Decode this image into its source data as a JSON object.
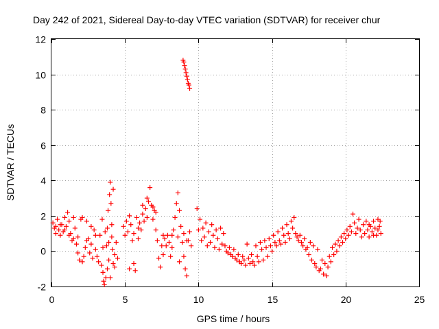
{
  "chart_data": {
    "type": "scatter",
    "title": "Day 242 of 2021, Sidereal Day-to-day VTEC variation (SDTVAR) for receiver chur",
    "xlabel": "GPS time / hours",
    "ylabel": "SDTVAR / TECUs",
    "xlim": [
      0,
      25
    ],
    "ylim": [
      -2,
      12
    ],
    "xticks": [
      "0",
      "5",
      "10",
      "15",
      "20",
      "25"
    ],
    "yticks": [
      "-2",
      "0",
      "2",
      "4",
      "6",
      "8",
      "10",
      "12"
    ],
    "grid": true,
    "marker": "+",
    "color": "#ff0000",
    "series": [
      {
        "name": "SDTVAR",
        "points": [
          [
            0.1,
            1.6
          ],
          [
            0.2,
            1.3
          ],
          [
            0.3,
            1.0
          ],
          [
            0.4,
            1.8
          ],
          [
            0.5,
            1.2
          ],
          [
            0.6,
            0.9
          ],
          [
            0.7,
            1.5
          ],
          [
            0.8,
            1.1
          ],
          [
            0.9,
            1.9
          ],
          [
            1.0,
            1.4
          ],
          [
            1.1,
            2.2
          ],
          [
            1.2,
            1.7
          ],
          [
            1.3,
            1.0
          ],
          [
            1.4,
            0.6
          ],
          [
            1.5,
            1.9
          ],
          [
            1.6,
            1.3
          ],
          [
            1.7,
            0.4
          ],
          [
            1.8,
            -0.1
          ],
          [
            1.9,
            -0.5
          ],
          [
            2.0,
            1.8
          ],
          [
            2.1,
            -0.6
          ],
          [
            2.2,
            -0.3
          ],
          [
            2.3,
            0.2
          ],
          [
            2.4,
            1.7
          ],
          [
            2.5,
            0.7
          ],
          [
            2.6,
            -0.1
          ],
          [
            2.7,
            1.4
          ],
          [
            2.8,
            -0.4
          ],
          [
            2.9,
            1.2
          ],
          [
            3.0,
            0.1
          ],
          [
            0.3,
            1.4
          ],
          [
            0.6,
            1.5
          ],
          [
            0.9,
            1.2
          ],
          [
            1.2,
            0.9
          ],
          [
            1.5,
            0.7
          ],
          [
            1.8,
            0.8
          ],
          [
            2.1,
            1.9
          ],
          [
            2.4,
            0.6
          ],
          [
            2.7,
            0.4
          ],
          [
            3.0,
            0.9
          ],
          [
            3.1,
            -0.3
          ],
          [
            3.2,
            -0.6
          ],
          [
            3.3,
            0.9
          ],
          [
            3.4,
            -0.8
          ],
          [
            3.45,
            1.8
          ],
          [
            3.5,
            -1.2
          ],
          [
            3.55,
            -1.7
          ],
          [
            3.6,
            -1.9
          ],
          [
            3.65,
            1.1
          ],
          [
            3.7,
            -1.5
          ],
          [
            3.75,
            0.3
          ],
          [
            3.8,
            -1.0
          ],
          [
            3.85,
            2.3
          ],
          [
            3.9,
            0.5
          ],
          [
            3.95,
            3.2
          ],
          [
            4.0,
            3.9
          ],
          [
            4.05,
            2.7
          ],
          [
            4.1,
            1.5
          ],
          [
            4.15,
            0.1
          ],
          [
            4.2,
            3.5
          ],
          [
            3.8,
            1.3
          ],
          [
            3.9,
            -0.5
          ],
          [
            4.0,
            -1.5
          ],
          [
            4.1,
            0.8
          ],
          [
            4.2,
            -0.7
          ],
          [
            4.3,
            -0.2
          ],
          [
            4.4,
            0.5
          ],
          [
            4.5,
            -0.4
          ],
          [
            4.3,
            -0.9
          ],
          [
            3.5,
            0.2
          ],
          [
            4.9,
            1.4
          ],
          [
            5.0,
            0.9
          ],
          [
            5.1,
            1.7
          ],
          [
            5.2,
            1.1
          ],
          [
            5.3,
            2.0
          ],
          [
            5.4,
            1.5
          ],
          [
            5.5,
            0.6
          ],
          [
            5.6,
            -0.7
          ],
          [
            5.7,
            -1.1
          ],
          [
            5.8,
            1.9
          ],
          [
            5.9,
            1.3
          ],
          [
            6.0,
            1.6
          ],
          [
            6.1,
            1.2
          ],
          [
            6.2,
            2.1
          ],
          [
            6.3,
            1.7
          ],
          [
            6.4,
            2.4
          ],
          [
            6.5,
            1.9
          ],
          [
            6.6,
            2.8
          ],
          [
            6.7,
            3.6
          ],
          [
            6.8,
            2.6
          ],
          [
            6.9,
            1.8
          ],
          [
            7.0,
            2.3
          ],
          [
            7.1,
            1.2
          ],
          [
            7.2,
            0.6
          ],
          [
            7.3,
            -0.4
          ],
          [
            7.4,
            -0.9
          ],
          [
            7.5,
            0.3
          ],
          [
            7.6,
            -0.2
          ],
          [
            7.7,
            0.7
          ],
          [
            7.8,
            0.3
          ],
          [
            7.9,
            0.9
          ],
          [
            8.0,
            0.5
          ],
          [
            8.1,
            -0.3
          ],
          [
            8.2,
            0.2
          ],
          [
            8.3,
            1.2
          ],
          [
            8.4,
            1.9
          ],
          [
            8.5,
            2.7
          ],
          [
            8.6,
            3.3
          ],
          [
            8.7,
            2.3
          ],
          [
            8.8,
            1.4
          ],
          [
            8.9,
            0.5
          ],
          [
            9.0,
            -0.3
          ],
          [
            9.1,
            -1.0
          ],
          [
            9.2,
            -1.4
          ],
          [
            9.3,
            0.6
          ],
          [
            9.4,
            1.1
          ],
          [
            9.5,
            0.3
          ],
          [
            9.0,
            1.0
          ],
          [
            8.6,
            0.8
          ],
          [
            8.2,
            0.9
          ],
          [
            6.5,
            3.0
          ],
          [
            6.2,
            2.6
          ],
          [
            5.9,
            0.7
          ],
          [
            5.3,
            -1.0
          ],
          [
            7.1,
            2.2
          ],
          [
            7.6,
            0.9
          ],
          [
            8.7,
            -0.6
          ],
          [
            9.2,
            0.6
          ],
          [
            6.9,
            2.5
          ],
          [
            5.6,
            1.0
          ],
          [
            8.95,
            10.8
          ],
          [
            9.0,
            10.7
          ],
          [
            9.05,
            10.5
          ],
          [
            9.1,
            10.3
          ],
          [
            9.15,
            10.1
          ],
          [
            9.2,
            9.9
          ],
          [
            9.25,
            9.7
          ],
          [
            9.3,
            9.5
          ],
          [
            9.35,
            9.4
          ],
          [
            9.4,
            9.2
          ],
          [
            9.9,
            2.4
          ],
          [
            10.0,
            1.2
          ],
          [
            10.1,
            1.8
          ],
          [
            10.2,
            0.6
          ],
          [
            10.3,
            1.3
          ],
          [
            10.4,
            0.8
          ],
          [
            10.5,
            1.6
          ],
          [
            10.6,
            0.3
          ],
          [
            10.7,
            1.1
          ],
          [
            10.8,
            0.5
          ],
          [
            10.9,
            1.5
          ],
          [
            11.0,
            0.9
          ],
          [
            11.1,
            0.2
          ],
          [
            11.2,
            1.2
          ],
          [
            11.3,
            0.7
          ],
          [
            11.4,
            0.1
          ],
          [
            11.5,
            1.3
          ],
          [
            11.6,
            0.4
          ],
          [
            11.7,
            1.0
          ],
          [
            11.8,
            0.3
          ],
          [
            11.9,
            0.0
          ],
          [
            12.0,
            -0.1
          ],
          [
            12.1,
            0.2
          ],
          [
            12.2,
            -0.2
          ],
          [
            12.3,
            -0.3
          ],
          [
            12.4,
            0.1
          ],
          [
            12.5,
            -0.4
          ],
          [
            12.6,
            -0.5
          ],
          [
            12.7,
            -0.2
          ],
          [
            12.8,
            -0.6
          ],
          [
            12.9,
            -0.7
          ],
          [
            13.0,
            -0.3
          ],
          [
            13.1,
            -0.5
          ],
          [
            13.2,
            -0.8
          ],
          [
            13.3,
            0.4
          ],
          [
            13.4,
            -0.4
          ],
          [
            13.5,
            -0.7
          ],
          [
            13.6,
            -0.2
          ],
          [
            13.7,
            -0.6
          ],
          [
            13.8,
            -0.8
          ],
          [
            13.9,
            0.3
          ],
          [
            14.0,
            -0.3
          ],
          [
            14.1,
            -0.6
          ],
          [
            14.2,
            0.5
          ],
          [
            14.3,
            0.1
          ],
          [
            14.4,
            -0.5
          ],
          [
            14.5,
            0.6
          ],
          [
            14.6,
            0.2
          ],
          [
            14.7,
            -0.3
          ],
          [
            14.8,
            0.7
          ],
          [
            14.9,
            0.3
          ],
          [
            15.0,
            0.0
          ],
          [
            15.1,
            0.9
          ],
          [
            15.2,
            0.5
          ],
          [
            15.3,
            0.3
          ],
          [
            15.4,
            1.1
          ],
          [
            15.5,
            0.6
          ],
          [
            15.6,
            0.4
          ],
          [
            15.7,
            1.3
          ],
          [
            15.8,
            0.9
          ],
          [
            15.9,
            0.5
          ],
          [
            16.0,
            1.5
          ],
          [
            16.1,
            1.0
          ],
          [
            16.2,
            0.7
          ],
          [
            16.3,
            1.7
          ],
          [
            16.4,
            1.3
          ],
          [
            16.5,
            1.9
          ],
          [
            16.6,
            1.0
          ],
          [
            16.7,
            0.8
          ],
          [
            16.8,
            0.6
          ],
          [
            16.9,
            0.9
          ],
          [
            17.0,
            0.5
          ],
          [
            17.1,
            0.3
          ],
          [
            17.2,
            0.7
          ],
          [
            17.3,
            0.1
          ],
          [
            17.4,
            0.2
          ],
          [
            17.5,
            -0.2
          ],
          [
            17.6,
            0.5
          ],
          [
            17.7,
            -0.5
          ],
          [
            17.8,
            0.3
          ],
          [
            17.9,
            -0.7
          ],
          [
            18.0,
            -0.9
          ],
          [
            18.1,
            0.1
          ],
          [
            18.2,
            -1.1
          ],
          [
            18.3,
            -1.0
          ],
          [
            18.4,
            -0.5
          ],
          [
            18.5,
            -1.3
          ],
          [
            18.6,
            -0.7
          ],
          [
            18.7,
            -1.4
          ],
          [
            18.8,
            -0.9
          ],
          [
            18.9,
            -0.3
          ],
          [
            19.0,
            -0.6
          ],
          [
            19.1,
            0.2
          ],
          [
            19.2,
            -0.2
          ],
          [
            19.3,
            0.4
          ],
          [
            19.4,
            0.0
          ],
          [
            19.5,
            0.6
          ],
          [
            19.6,
            0.3
          ],
          [
            19.7,
            0.8
          ],
          [
            19.8,
            0.5
          ],
          [
            19.9,
            1.0
          ],
          [
            20.0,
            0.7
          ],
          [
            20.1,
            1.2
          ],
          [
            20.2,
            0.9
          ],
          [
            20.3,
            1.4
          ],
          [
            20.4,
            1.1
          ],
          [
            20.5,
            2.1
          ],
          [
            20.6,
            1.6
          ],
          [
            20.7,
            1.0
          ],
          [
            20.8,
            1.3
          ],
          [
            20.9,
            1.8
          ],
          [
            21.0,
            1.2
          ],
          [
            21.1,
            0.8
          ],
          [
            21.2,
            1.5
          ],
          [
            21.3,
            1.0
          ],
          [
            21.4,
            1.7
          ],
          [
            21.5,
            1.2
          ],
          [
            21.6,
            0.8
          ],
          [
            21.7,
            1.4
          ],
          [
            21.8,
            1.1
          ],
          [
            21.9,
            1.7
          ],
          [
            22.0,
            1.3
          ],
          [
            22.1,
            0.9
          ],
          [
            22.2,
            1.8
          ],
          [
            22.3,
            1.4
          ],
          [
            22.4,
            1.0
          ],
          [
            22.35,
            1.7
          ],
          [
            22.2,
            1.2
          ],
          [
            21.9,
            0.9
          ],
          [
            21.6,
            1.5
          ]
        ]
      }
    ]
  }
}
